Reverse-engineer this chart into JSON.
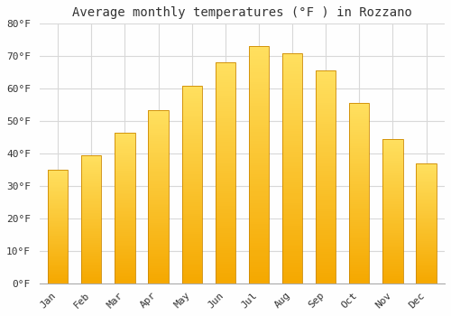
{
  "title": "Average monthly temperatures (°F ) in Rozzano",
  "months": [
    "Jan",
    "Feb",
    "Mar",
    "Apr",
    "May",
    "Jun",
    "Jul",
    "Aug",
    "Sep",
    "Oct",
    "Nov",
    "Dec"
  ],
  "values": [
    35.0,
    39.5,
    46.5,
    53.5,
    61.0,
    68.0,
    73.0,
    71.0,
    65.5,
    55.5,
    44.5,
    37.0
  ],
  "bar_color_bottom": "#F5A800",
  "bar_color_top": "#FFD84D",
  "bar_edge_color": "#CC8800",
  "background_color": "#FEFEFE",
  "grid_color": "#D8D8D8",
  "text_color": "#333333",
  "ylim": [
    0,
    80
  ],
  "title_fontsize": 10,
  "tick_fontsize": 8,
  "font_family": "monospace"
}
